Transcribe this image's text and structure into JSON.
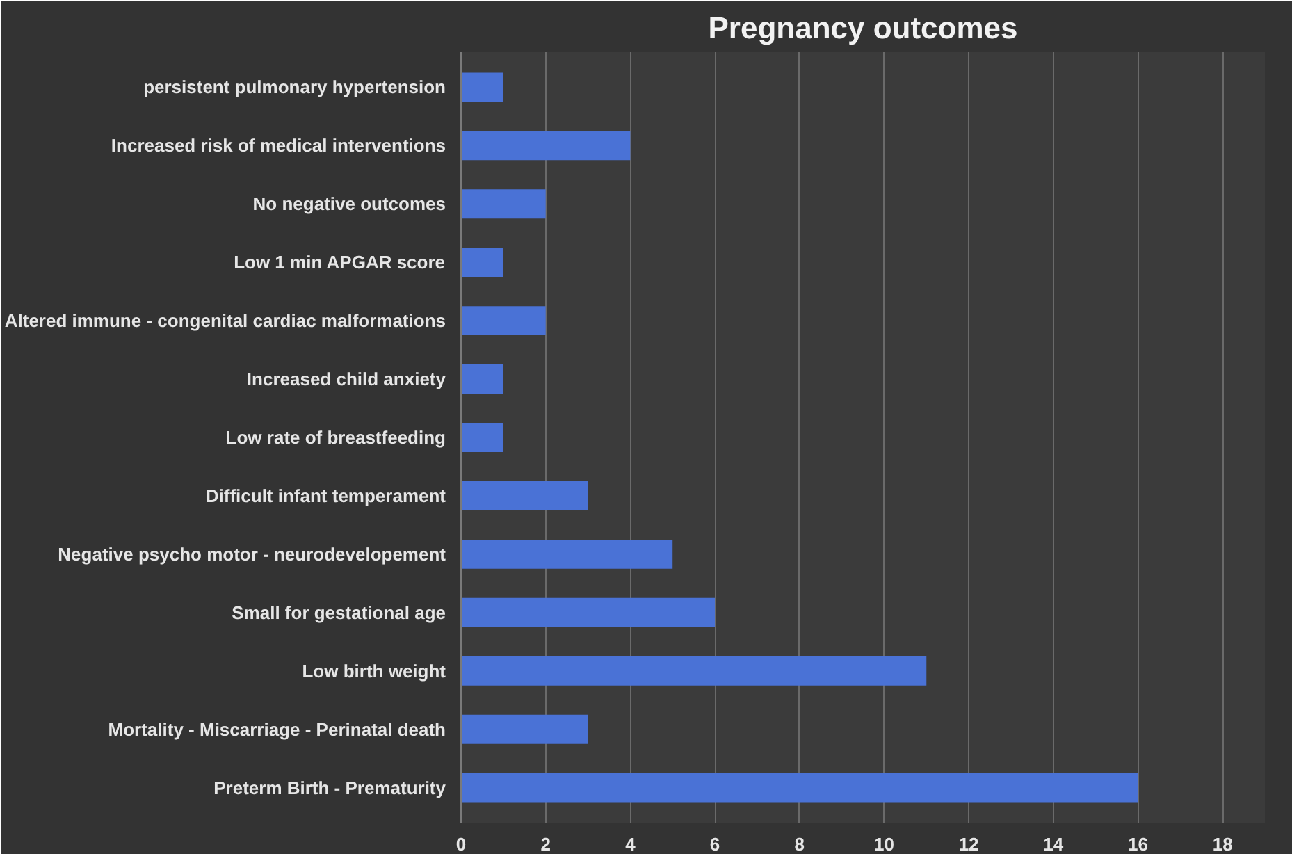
{
  "chart_data": {
    "type": "bar",
    "orientation": "horizontal",
    "title": "Pregnancy outcomes",
    "categories": [
      "persistent pulmonary hypertension",
      "Increased risk of medical interventions",
      "No negative outcomes",
      "Low 1 min APGAR score",
      "Altered immune - congenital cardiac malformations",
      "Increased child anxiety",
      "Low rate of breastfeeding",
      "Difficult infant temperament",
      "Negative psycho motor - neurodevelopement",
      "Small for gestational age",
      "Low birth weight",
      "Mortality - Miscarriage - Perinatal death",
      "Preterm Birth - Prematurity"
    ],
    "values": [
      1,
      4,
      2,
      1,
      2,
      1,
      1,
      3,
      5,
      6,
      11,
      3,
      16
    ],
    "color": "#4a72d6",
    "xlim": [
      0,
      19
    ],
    "xticks": [
      0,
      2,
      4,
      6,
      8,
      10,
      12,
      14,
      16,
      18
    ],
    "grid": "x"
  }
}
